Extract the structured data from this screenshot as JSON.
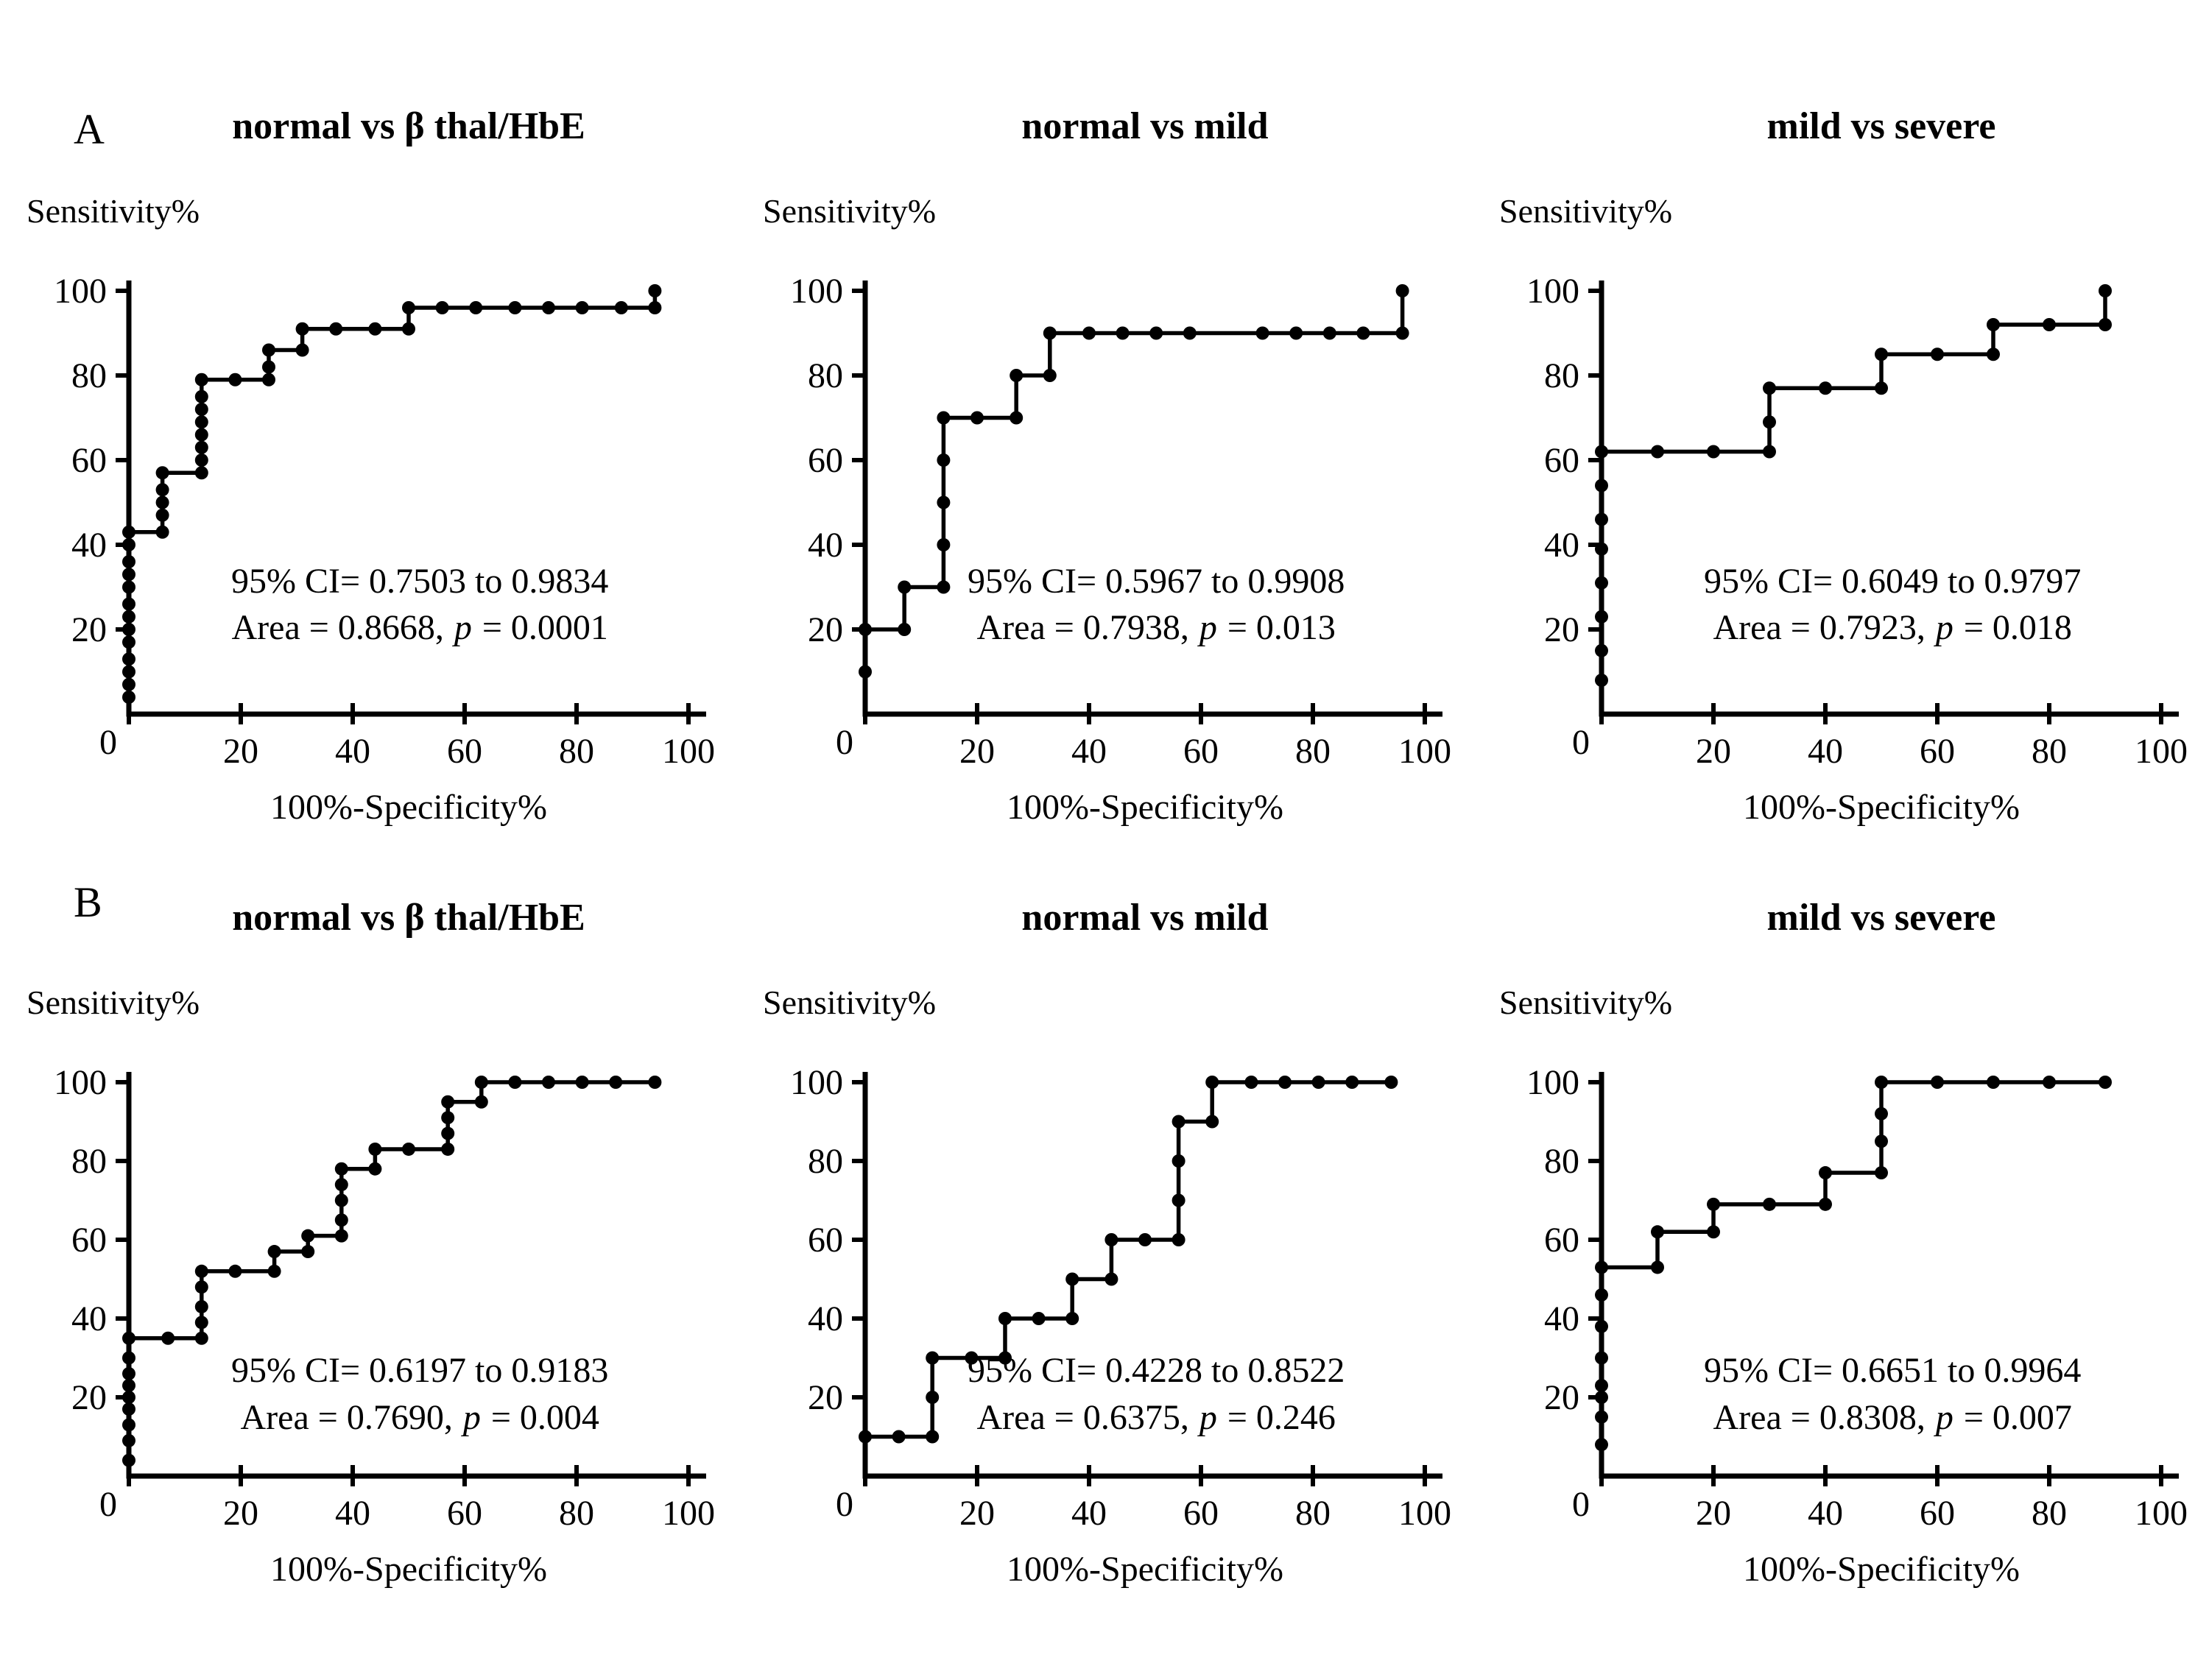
{
  "colors": {
    "background": "#ffffff",
    "foreground": "#000000",
    "curve": "#000000"
  },
  "panels": [
    {
      "label": "A"
    },
    {
      "label": "B"
    }
  ],
  "chart_data": [
    {
      "panel": "A",
      "col": 0,
      "type": "line",
      "title": "normal vs β thal/HbE",
      "xlabel": "100%-Specificity%",
      "ylabel": "Sensitivity%",
      "xlim": [
        0,
        100
      ],
      "ylim": [
        0,
        100
      ],
      "xticks": [
        0,
        20,
        40,
        60,
        80,
        100
      ],
      "yticks": [
        0,
        20,
        40,
        60,
        80,
        100
      ],
      "grid": false,
      "legend": false,
      "marker": "circle",
      "annotation": {
        "ci_line": "95% CI= 0.7503 to 0.9834",
        "area_prefix": "Area = 0.8668,",
        "p_symbol": "p",
        "p_suffix": "= 0.0001",
        "ci": [
          0.7503,
          0.9834
        ],
        "auc": 0.8668,
        "p": 0.0001
      },
      "points": [
        [
          0,
          4
        ],
        [
          0,
          7
        ],
        [
          0,
          10
        ],
        [
          0,
          13
        ],
        [
          0,
          17
        ],
        [
          0,
          20
        ],
        [
          0,
          23
        ],
        [
          0,
          26
        ],
        [
          0,
          30
        ],
        [
          0,
          33
        ],
        [
          0,
          36
        ],
        [
          0,
          40
        ],
        [
          0,
          43
        ],
        [
          6,
          43
        ],
        [
          6,
          47
        ],
        [
          6,
          50
        ],
        [
          6,
          53
        ],
        [
          6,
          57
        ],
        [
          13,
          57
        ],
        [
          13,
          60
        ],
        [
          13,
          63
        ],
        [
          13,
          66
        ],
        [
          13,
          69
        ],
        [
          13,
          72
        ],
        [
          13,
          75
        ],
        [
          13,
          79
        ],
        [
          19,
          79
        ],
        [
          25,
          79
        ],
        [
          25,
          82
        ],
        [
          25,
          86
        ],
        [
          31,
          86
        ],
        [
          31,
          91
        ],
        [
          37,
          91
        ],
        [
          44,
          91
        ],
        [
          50,
          91
        ],
        [
          50,
          96
        ],
        [
          56,
          96
        ],
        [
          62,
          96
        ],
        [
          69,
          96
        ],
        [
          75,
          96
        ],
        [
          81,
          96
        ],
        [
          88,
          96
        ],
        [
          94,
          96
        ],
        [
          94,
          100
        ]
      ]
    },
    {
      "panel": "A",
      "col": 1,
      "type": "line",
      "title": "normal vs mild",
      "xlabel": "100%-Specificity%",
      "ylabel": "Sensitivity%",
      "xlim": [
        0,
        100
      ],
      "ylim": [
        0,
        100
      ],
      "xticks": [
        0,
        20,
        40,
        60,
        80,
        100
      ],
      "yticks": [
        0,
        20,
        40,
        60,
        80,
        100
      ],
      "grid": false,
      "legend": false,
      "marker": "circle",
      "annotation": {
        "ci_line": "95% CI= 0.5967 to 0.9908",
        "area_prefix": "Area = 0.7938,",
        "p_symbol": "p",
        "p_suffix": "= 0.013",
        "ci": [
          0.5967,
          0.9908
        ],
        "auc": 0.7938,
        "p": 0.013
      },
      "points": [
        [
          0,
          10
        ],
        [
          0,
          20
        ],
        [
          7,
          20
        ],
        [
          7,
          30
        ],
        [
          14,
          30
        ],
        [
          14,
          40
        ],
        [
          14,
          50
        ],
        [
          14,
          60
        ],
        [
          14,
          70
        ],
        [
          20,
          70
        ],
        [
          27,
          70
        ],
        [
          27,
          80
        ],
        [
          33,
          80
        ],
        [
          33,
          90
        ],
        [
          40,
          90
        ],
        [
          46,
          90
        ],
        [
          52,
          90
        ],
        [
          58,
          90
        ],
        [
          71,
          90
        ],
        [
          77,
          90
        ],
        [
          83,
          90
        ],
        [
          89,
          90
        ],
        [
          96,
          90
        ],
        [
          96,
          100
        ]
      ]
    },
    {
      "panel": "A",
      "col": 2,
      "type": "line",
      "title": "mild vs severe",
      "xlabel": "100%-Specificity%",
      "ylabel": "Sensitivity%",
      "xlim": [
        0,
        100
      ],
      "ylim": [
        0,
        100
      ],
      "xticks": [
        0,
        20,
        40,
        60,
        80,
        100
      ],
      "yticks": [
        0,
        20,
        40,
        60,
        80,
        100
      ],
      "grid": false,
      "legend": false,
      "marker": "circle",
      "annotation": {
        "ci_line": "95% CI= 0.6049 to 0.9797",
        "area_prefix": "Area = 0.7923,",
        "p_symbol": "p",
        "p_suffix": "= 0.018",
        "ci": [
          0.6049,
          0.9797
        ],
        "auc": 0.7923,
        "p": 0.018
      },
      "points": [
        [
          0,
          8
        ],
        [
          0,
          15
        ],
        [
          0,
          23
        ],
        [
          0,
          31
        ],
        [
          0,
          39
        ],
        [
          0,
          46
        ],
        [
          0,
          54
        ],
        [
          0,
          62
        ],
        [
          10,
          62
        ],
        [
          20,
          62
        ],
        [
          30,
          62
        ],
        [
          30,
          69
        ],
        [
          30,
          77
        ],
        [
          40,
          77
        ],
        [
          50,
          77
        ],
        [
          50,
          85
        ],
        [
          60,
          85
        ],
        [
          70,
          85
        ],
        [
          70,
          92
        ],
        [
          80,
          92
        ],
        [
          90,
          92
        ],
        [
          90,
          100
        ]
      ]
    },
    {
      "panel": "B",
      "col": 0,
      "type": "line",
      "title": "normal vs β thal/HbE",
      "xlabel": "100%-Specificity%",
      "ylabel": "Sensitivity%",
      "xlim": [
        0,
        100
      ],
      "ylim": [
        0,
        100
      ],
      "xticks": [
        0,
        20,
        40,
        60,
        80,
        100
      ],
      "yticks": [
        0,
        20,
        40,
        60,
        80,
        100
      ],
      "grid": false,
      "legend": false,
      "marker": "circle",
      "annotation": {
        "ci_line": "95% CI= 0.6197 to 0.9183",
        "area_prefix": "Area = 0.7690,",
        "p_symbol": "p",
        "p_suffix": "= 0.004",
        "ci": [
          0.6197,
          0.9183
        ],
        "auc": 0.769,
        "p": 0.004
      },
      "points": [
        [
          0,
          4
        ],
        [
          0,
          9
        ],
        [
          0,
          13
        ],
        [
          0,
          17
        ],
        [
          0,
          20
        ],
        [
          0,
          23
        ],
        [
          0,
          26
        ],
        [
          0,
          30
        ],
        [
          0,
          35
        ],
        [
          7,
          35
        ],
        [
          13,
          35
        ],
        [
          13,
          39
        ],
        [
          13,
          43
        ],
        [
          13,
          48
        ],
        [
          13,
          52
        ],
        [
          19,
          52
        ],
        [
          26,
          52
        ],
        [
          26,
          57
        ],
        [
          32,
          57
        ],
        [
          32,
          61
        ],
        [
          38,
          61
        ],
        [
          38,
          65
        ],
        [
          38,
          70
        ],
        [
          38,
          74
        ],
        [
          38,
          78
        ],
        [
          44,
          78
        ],
        [
          44,
          83
        ],
        [
          50,
          83
        ],
        [
          57,
          83
        ],
        [
          57,
          87
        ],
        [
          57,
          91
        ],
        [
          57,
          95
        ],
        [
          63,
          95
        ],
        [
          63,
          100
        ],
        [
          69,
          100
        ],
        [
          75,
          100
        ],
        [
          81,
          100
        ],
        [
          87,
          100
        ],
        [
          94,
          100
        ]
      ]
    },
    {
      "panel": "B",
      "col": 1,
      "type": "line",
      "title": "normal vs mild",
      "xlabel": "100%-Specificity%",
      "ylabel": "Sensitivity%",
      "xlim": [
        0,
        100
      ],
      "ylim": [
        0,
        100
      ],
      "xticks": [
        0,
        20,
        40,
        60,
        80,
        100
      ],
      "yticks": [
        0,
        20,
        40,
        60,
        80,
        100
      ],
      "grid": false,
      "legend": false,
      "marker": "circle",
      "annotation": {
        "ci_line": "95% CI= 0.4228 to 0.8522",
        "area_prefix": "Area = 0.6375,",
        "p_symbol": "p",
        "p_suffix": "= 0.246",
        "ci": [
          0.4228,
          0.8522
        ],
        "auc": 0.6375,
        "p": 0.246
      },
      "points": [
        [
          0,
          10
        ],
        [
          6,
          10
        ],
        [
          12,
          10
        ],
        [
          12,
          20
        ],
        [
          12,
          30
        ],
        [
          19,
          30
        ],
        [
          25,
          30
        ],
        [
          25,
          40
        ],
        [
          31,
          40
        ],
        [
          37,
          40
        ],
        [
          37,
          50
        ],
        [
          44,
          50
        ],
        [
          44,
          60
        ],
        [
          50,
          60
        ],
        [
          56,
          60
        ],
        [
          56,
          70
        ],
        [
          56,
          80
        ],
        [
          56,
          90
        ],
        [
          62,
          90
        ],
        [
          62,
          100
        ],
        [
          69,
          100
        ],
        [
          75,
          100
        ],
        [
          81,
          100
        ],
        [
          87,
          100
        ],
        [
          94,
          100
        ]
      ]
    },
    {
      "panel": "B",
      "col": 2,
      "type": "line",
      "title": "mild vs severe",
      "xlabel": "100%-Specificity%",
      "ylabel": "Sensitivity%",
      "xlim": [
        0,
        100
      ],
      "ylim": [
        0,
        100
      ],
      "xticks": [
        0,
        20,
        40,
        60,
        80,
        100
      ],
      "yticks": [
        0,
        20,
        40,
        60,
        80,
        100
      ],
      "grid": false,
      "legend": false,
      "marker": "circle",
      "annotation": {
        "ci_line": "95% CI= 0.6651 to 0.9964",
        "area_prefix": "Area = 0.8308,",
        "p_symbol": "p",
        "p_suffix": "= 0.007",
        "ci": [
          0.6651,
          0.9964
        ],
        "auc": 0.8308,
        "p": 0.007
      },
      "points": [
        [
          0,
          8
        ],
        [
          0,
          15
        ],
        [
          0,
          20
        ],
        [
          0,
          23
        ],
        [
          0,
          30
        ],
        [
          0,
          38
        ],
        [
          0,
          46
        ],
        [
          0,
          53
        ],
        [
          10,
          53
        ],
        [
          10,
          62
        ],
        [
          20,
          62
        ],
        [
          20,
          69
        ],
        [
          30,
          69
        ],
        [
          40,
          69
        ],
        [
          40,
          77
        ],
        [
          50,
          77
        ],
        [
          50,
          85
        ],
        [
          50,
          92
        ],
        [
          50,
          100
        ],
        [
          60,
          100
        ],
        [
          70,
          100
        ],
        [
          80,
          100
        ],
        [
          90,
          100
        ]
      ]
    }
  ]
}
